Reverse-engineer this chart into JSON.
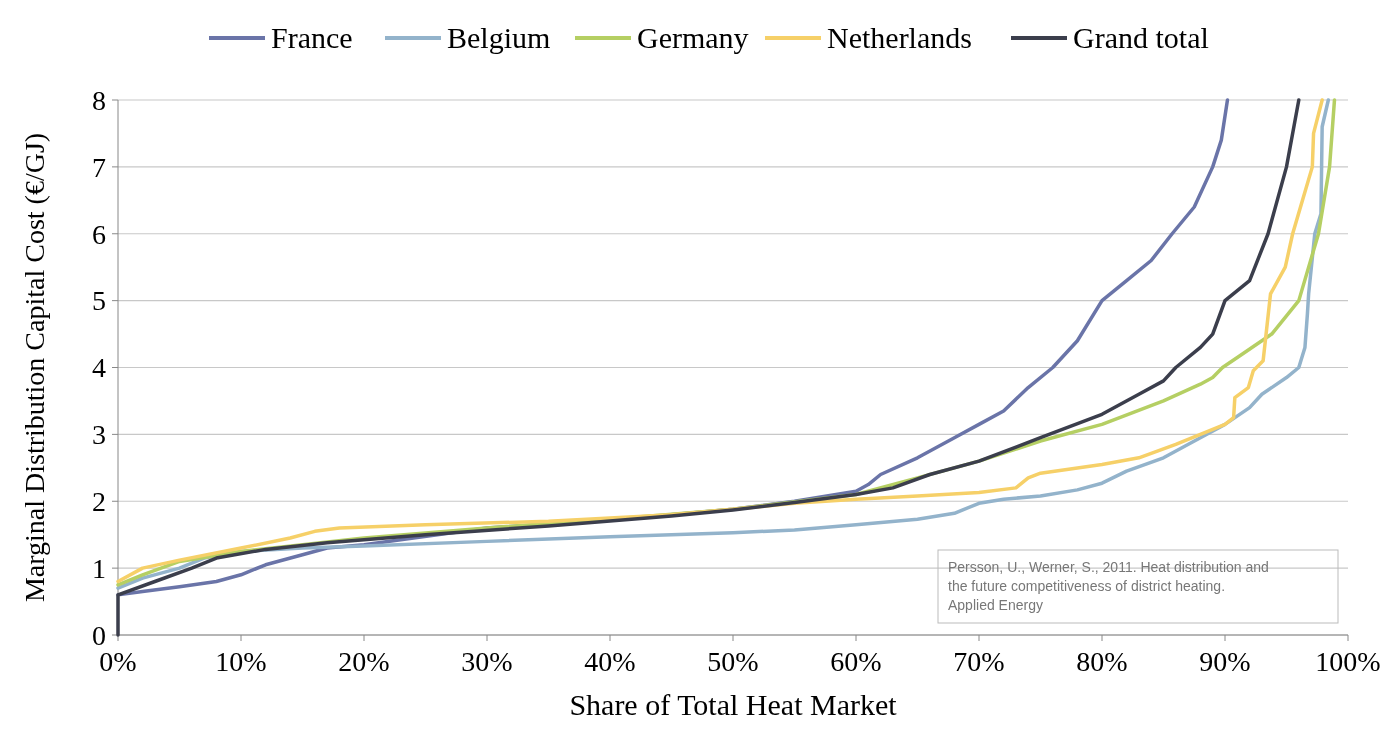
{
  "chart_data": {
    "type": "line",
    "xlabel": "Share of Total Heat Market",
    "ylabel": "Marginal Distribution Capital Cost (€/GJ)",
    "xlim": [
      0,
      100
    ],
    "ylim": [
      0,
      8
    ],
    "xticks": [
      {
        "value": 0,
        "label": "0%"
      },
      {
        "value": 10,
        "label": "10%"
      },
      {
        "value": 20,
        "label": "20%"
      },
      {
        "value": 30,
        "label": "30%"
      },
      {
        "value": 40,
        "label": "40%"
      },
      {
        "value": 50,
        "label": "50%"
      },
      {
        "value": 60,
        "label": "60%"
      },
      {
        "value": 70,
        "label": "70%"
      },
      {
        "value": 80,
        "label": "80%"
      },
      {
        "value": 90,
        "label": "90%"
      },
      {
        "value": 100,
        "label": "100%"
      }
    ],
    "yticks": [
      0,
      1,
      2,
      3,
      4,
      5,
      6,
      7,
      8
    ],
    "grid": "y",
    "legend": "top",
    "marker": "none",
    "line_style": "solid",
    "annotations": [
      "Persson, U., Werner, S., 2011. Heat distribution and the future competitiveness of district heating. Applied Energy"
    ],
    "series": [
      {
        "name": "France",
        "color": "#6a74a8",
        "x": [
          0,
          2,
          5,
          8,
          10,
          12,
          15,
          17,
          20,
          30,
          40,
          50,
          55,
          60,
          61,
          62,
          65,
          68,
          70,
          72,
          74,
          76,
          78,
          80,
          82,
          84,
          85.7,
          87.5,
          89,
          89.7,
          90.2
        ],
        "values": [
          0.6,
          0.65,
          0.72,
          0.8,
          0.9,
          1.05,
          1.2,
          1.3,
          1.35,
          1.6,
          1.72,
          1.88,
          2.0,
          2.15,
          2.25,
          2.4,
          2.65,
          2.95,
          3.15,
          3.35,
          3.7,
          4.0,
          4.4,
          5.0,
          5.3,
          5.6,
          6.0,
          6.4,
          7.0,
          7.4,
          8.0
        ]
      },
      {
        "name": "Belgium",
        "color": "#93b3cb",
        "x": [
          0,
          2,
          5,
          7,
          10,
          15,
          20,
          30,
          40,
          50,
          55,
          60,
          65,
          68,
          70,
          72,
          75,
          78,
          80,
          82,
          85,
          88,
          90,
          92,
          93,
          95,
          96,
          96.5,
          96.7,
          96.8,
          97.3,
          97.8,
          97.9,
          98.4
        ],
        "values": [
          0.7,
          0.85,
          1.0,
          1.15,
          1.25,
          1.3,
          1.33,
          1.4,
          1.47,
          1.53,
          1.57,
          1.65,
          1.73,
          1.82,
          1.97,
          2.03,
          2.08,
          2.17,
          2.27,
          2.45,
          2.65,
          2.95,
          3.15,
          3.4,
          3.6,
          3.85,
          4.0,
          4.3,
          4.8,
          5.1,
          6.0,
          6.3,
          7.6,
          8.0
        ]
      },
      {
        "name": "Germany",
        "color": "#b5cf63",
        "x": [
          0,
          2,
          5,
          10,
          15,
          20,
          30,
          40,
          50,
          60,
          65,
          70,
          75,
          80,
          85,
          88,
          89,
          89.8,
          91,
          93.8,
          96,
          97.6,
          98.5,
          98.9
        ],
        "values": [
          0.75,
          0.9,
          1.1,
          1.25,
          1.35,
          1.45,
          1.6,
          1.73,
          1.88,
          2.1,
          2.35,
          2.6,
          2.9,
          3.15,
          3.5,
          3.75,
          3.85,
          4.0,
          4.15,
          4.5,
          5.0,
          6.0,
          7.0,
          8.0
        ]
      },
      {
        "name": "Netherlands",
        "color": "#f6d068",
        "x": [
          0,
          2,
          5,
          10,
          14,
          16,
          18,
          25,
          35,
          45,
          50,
          55,
          60,
          65,
          70,
          73,
          74,
          75,
          80,
          83,
          86,
          88,
          90,
          90.7,
          90.8,
          91.9,
          92.3,
          93.1,
          93.7,
          94.9,
          95.5,
          96.3,
          97.1,
          97.2,
          97.9
        ],
        "values": [
          0.8,
          1.0,
          1.12,
          1.3,
          1.45,
          1.55,
          1.6,
          1.65,
          1.7,
          1.8,
          1.88,
          1.97,
          2.03,
          2.08,
          2.13,
          2.2,
          2.35,
          2.42,
          2.55,
          2.65,
          2.85,
          3.0,
          3.15,
          3.25,
          3.55,
          3.7,
          3.95,
          4.1,
          5.1,
          5.5,
          6.0,
          6.5,
          7.0,
          7.5,
          8.0
        ]
      },
      {
        "name": "Grand total",
        "color": "#3b3e4c",
        "x": [
          0,
          0,
          3,
          6,
          8,
          12,
          17,
          25,
          35,
          45,
          50,
          55,
          60,
          63,
          66,
          70,
          75,
          80,
          83,
          85,
          86,
          88,
          89,
          90,
          92,
          93.5,
          95,
          96
        ],
        "values": [
          0,
          0.6,
          0.8,
          1.0,
          1.15,
          1.28,
          1.38,
          1.5,
          1.63,
          1.78,
          1.87,
          1.98,
          2.1,
          2.2,
          2.4,
          2.6,
          2.95,
          3.3,
          3.6,
          3.8,
          4.0,
          4.3,
          4.5,
          5.0,
          5.3,
          6.0,
          7.0,
          8.0
        ]
      }
    ]
  }
}
